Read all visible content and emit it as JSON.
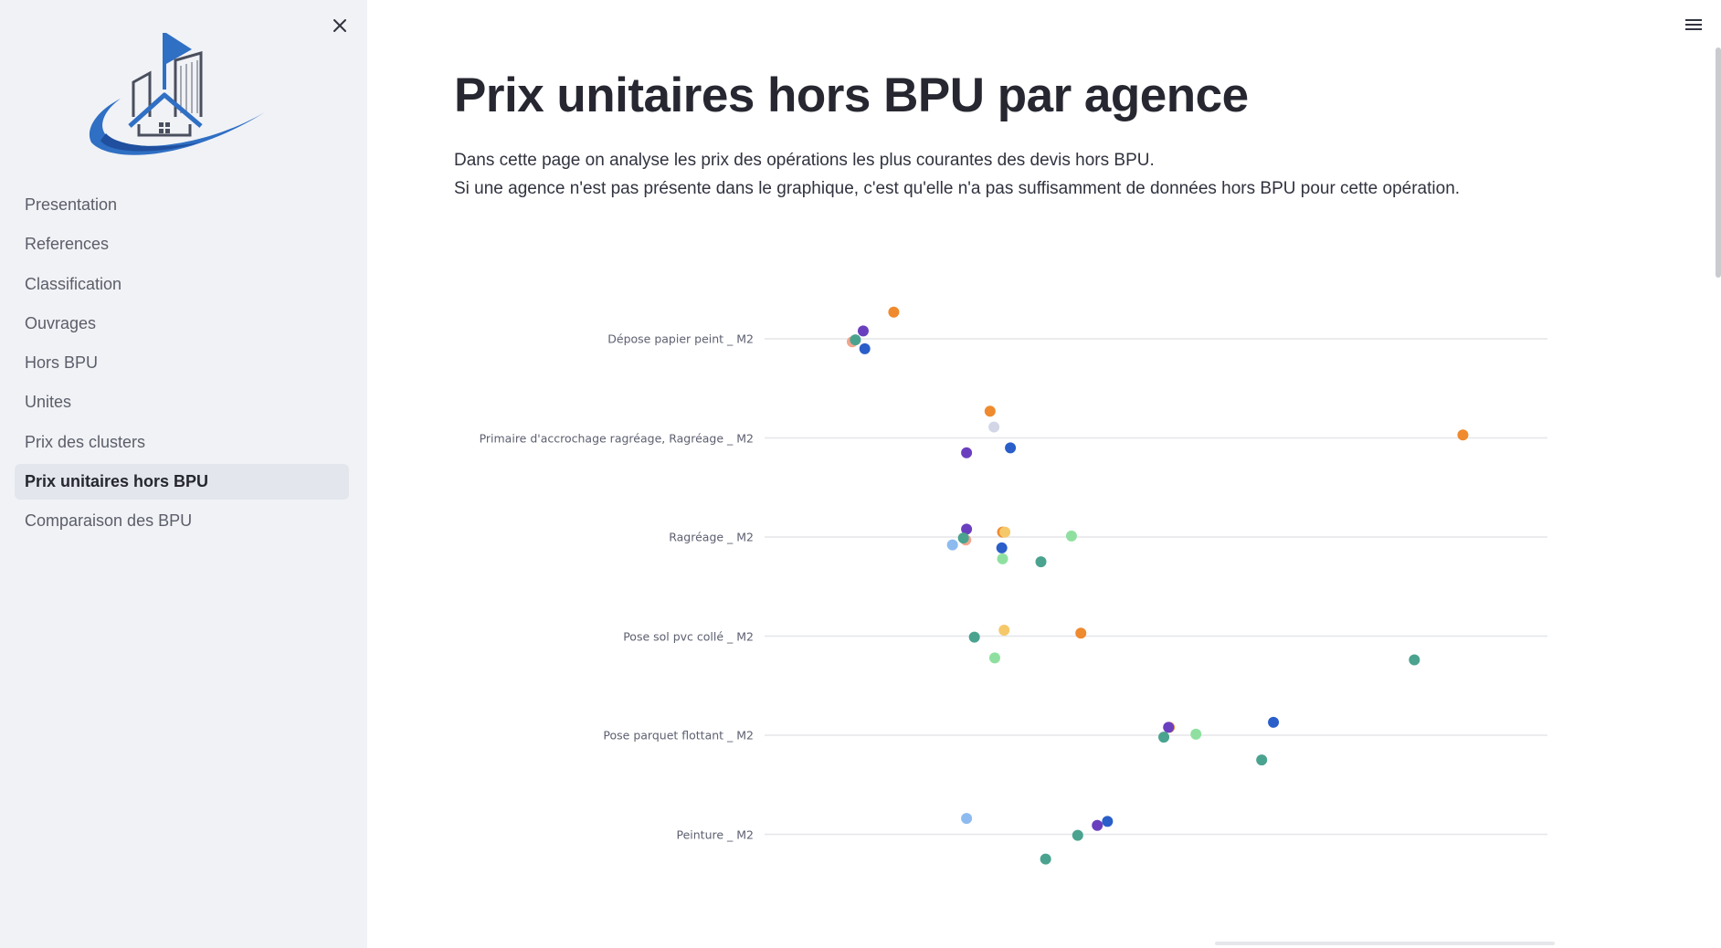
{
  "sidebar": {
    "close_icon": "close-icon",
    "logo": "building-house-logo",
    "nav_items": [
      {
        "label": "Presentation",
        "active": false
      },
      {
        "label": "References",
        "active": false
      },
      {
        "label": "Classification",
        "active": false
      },
      {
        "label": "Ouvrages",
        "active": false
      },
      {
        "label": "Hors BPU",
        "active": false
      },
      {
        "label": "Unites",
        "active": false
      },
      {
        "label": "Prix des clusters",
        "active": false
      },
      {
        "label": "Prix unitaires hors BPU",
        "active": true
      },
      {
        "label": "Comparaison des BPU",
        "active": false
      }
    ]
  },
  "header": {
    "menu_icon": "hamburger-menu-icon"
  },
  "main": {
    "title": "Prix unitaires hors BPU par agence",
    "description_line1": "Dans cette page on analyse les prix des opérations les plus courantes des devis hors BPU.",
    "description_line2": "Si une agence n'est pas présente dans le graphique, c'est qu'elle n'a pas suffisamment de données hors BPU pour cette opération."
  },
  "colors": {
    "orange": "#ef8a2e",
    "purple": "#6a3fbf",
    "blue": "#2a5ec9",
    "teal": "#4aa38f",
    "salmon": "#f2a58e",
    "lavender": "#d3d6e6",
    "lightblue": "#8dbbf0",
    "lightgreen": "#8fe0a0",
    "yellow": "#f5c86a"
  },
  "chart_data": {
    "type": "scatter",
    "title": "",
    "xlabel": "",
    "ylabel": "",
    "grid": true,
    "categories": [
      "Dépose papier peint _ M2",
      "Primaire d'accrochage ragréage, Ragréage _ M2",
      "Ragréage _ M2",
      "Pose sol pvc collé _ M2",
      "Pose parquet flottant _ M2",
      "Peinture _ M2"
    ],
    "xlim": [
      0,
      100
    ],
    "points": [
      {
        "category": 0,
        "x": 16.5,
        "jitter": -0.27,
        "color": "orange"
      },
      {
        "category": 0,
        "x": 12.6,
        "jitter": -0.08,
        "color": "purple"
      },
      {
        "category": 0,
        "x": 11.2,
        "jitter": 0.03,
        "color": "salmon"
      },
      {
        "category": 0,
        "x": 11.6,
        "jitter": 0.01,
        "color": "teal"
      },
      {
        "category": 0,
        "x": 12.8,
        "jitter": 0.1,
        "color": "blue"
      },
      {
        "category": 1,
        "x": 28.8,
        "jitter": -0.27,
        "color": "orange"
      },
      {
        "category": 1,
        "x": 29.3,
        "jitter": -0.11,
        "color": "lavender"
      },
      {
        "category": 1,
        "x": 31.4,
        "jitter": 0.1,
        "color": "blue"
      },
      {
        "category": 1,
        "x": 25.8,
        "jitter": 0.15,
        "color": "purple"
      },
      {
        "category": 1,
        "x": 89.2,
        "jitter": -0.03,
        "color": "orange"
      },
      {
        "category": 2,
        "x": 25.8,
        "jitter": -0.08,
        "color": "purple"
      },
      {
        "category": 2,
        "x": 30.4,
        "jitter": -0.05,
        "color": "orange"
      },
      {
        "category": 2,
        "x": 30.7,
        "jitter": -0.05,
        "color": "yellow"
      },
      {
        "category": 2,
        "x": 39.2,
        "jitter": -0.01,
        "color": "lightgreen"
      },
      {
        "category": 2,
        "x": 25.7,
        "jitter": 0.03,
        "color": "salmon"
      },
      {
        "category": 2,
        "x": 25.4,
        "jitter": 0.01,
        "color": "teal"
      },
      {
        "category": 2,
        "x": 24.0,
        "jitter": 0.08,
        "color": "lightblue"
      },
      {
        "category": 2,
        "x": 30.3,
        "jitter": 0.11,
        "color": "blue"
      },
      {
        "category": 2,
        "x": 30.4,
        "jitter": 0.22,
        "color": "lightgreen"
      },
      {
        "category": 2,
        "x": 35.3,
        "jitter": 0.25,
        "color": "teal"
      },
      {
        "category": 3,
        "x": 30.6,
        "jitter": -0.06,
        "color": "yellow"
      },
      {
        "category": 3,
        "x": 40.4,
        "jitter": -0.03,
        "color": "orange"
      },
      {
        "category": 3,
        "x": 26.8,
        "jitter": 0.01,
        "color": "teal"
      },
      {
        "category": 3,
        "x": 29.4,
        "jitter": 0.22,
        "color": "lightgreen"
      },
      {
        "category": 3,
        "x": 83.0,
        "jitter": 0.24,
        "color": "teal"
      },
      {
        "category": 4,
        "x": 65.0,
        "jitter": -0.13,
        "color": "blue"
      },
      {
        "category": 4,
        "x": 51.7,
        "jitter": -0.08,
        "color": "orange"
      },
      {
        "category": 4,
        "x": 51.6,
        "jitter": -0.08,
        "color": "purple"
      },
      {
        "category": 4,
        "x": 55.1,
        "jitter": -0.01,
        "color": "lightgreen"
      },
      {
        "category": 4,
        "x": 51.0,
        "jitter": 0.02,
        "color": "teal"
      },
      {
        "category": 4,
        "x": 63.5,
        "jitter": 0.25,
        "color": "teal"
      },
      {
        "category": 5,
        "x": 25.8,
        "jitter": -0.16,
        "color": "lightblue"
      },
      {
        "category": 5,
        "x": 43.8,
        "jitter": -0.13,
        "color": "blue"
      },
      {
        "category": 5,
        "x": 42.5,
        "jitter": -0.09,
        "color": "purple"
      },
      {
        "category": 5,
        "x": 40.0,
        "jitter": 0.01,
        "color": "teal"
      },
      {
        "category": 5,
        "x": 35.9,
        "jitter": 0.25,
        "color": "teal"
      }
    ]
  }
}
